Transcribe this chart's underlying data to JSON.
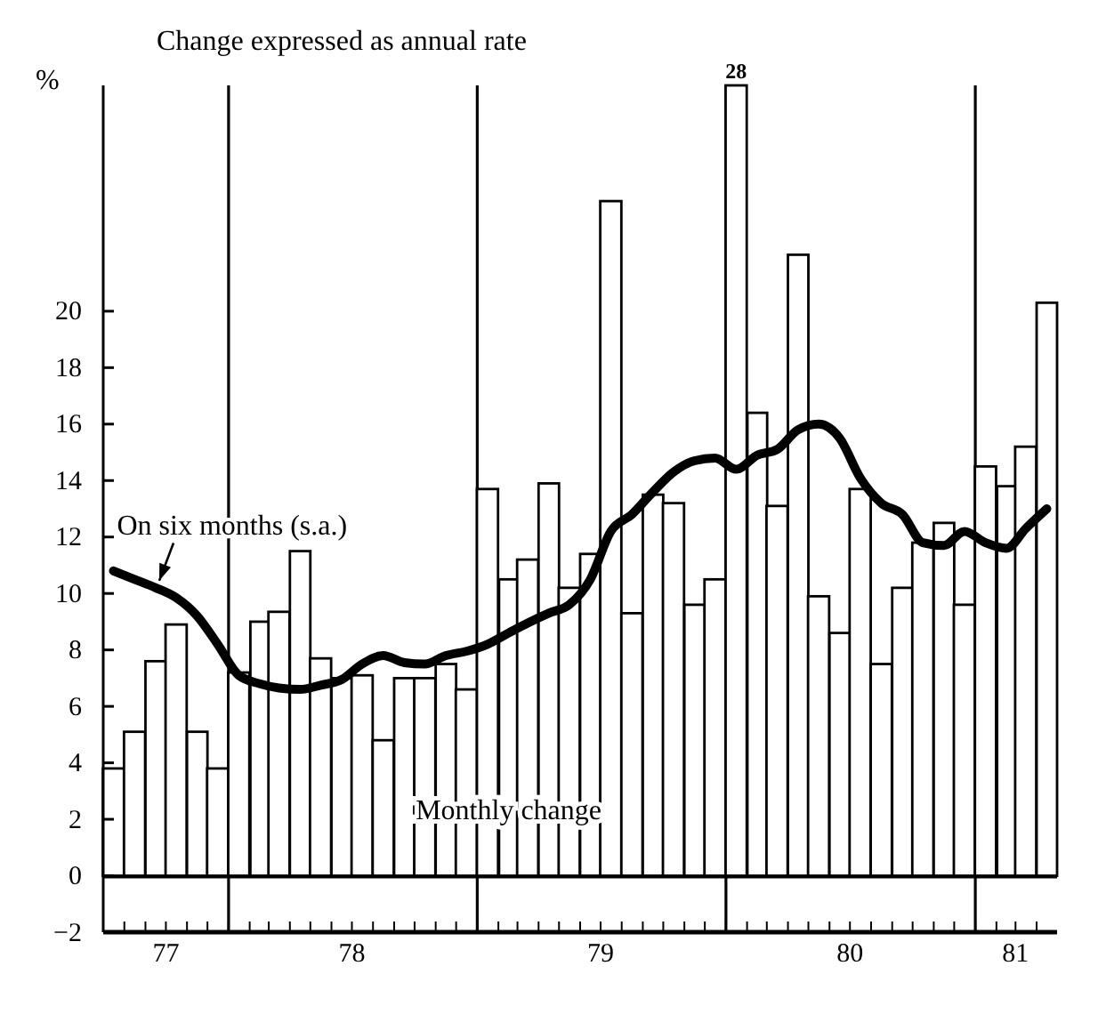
{
  "chart_data": {
    "type": "bar",
    "ylabel": "%",
    "x": [
      "1977-07-16",
      "1977-08-16",
      "1977-09-16",
      "1977-10-16",
      "1977-11-16",
      "1977-12-16",
      "1978-01-16",
      "1978-02-16",
      "1978-03-16",
      "1978-04-16",
      "1978-05-16",
      "1978-06-16",
      "1978-07-16",
      "1978-08-16",
      "1978-09-16",
      "1978-10-16",
      "1978-11-16",
      "1978-12-16",
      "1979-01-16",
      "1979-02-16",
      "1979-03-16",
      "1979-04-16",
      "1979-05-16",
      "1979-06-16",
      "1979-07-16",
      "1979-08-16",
      "1979-09-16",
      "1979-10-16",
      "1979-11-16",
      "1979-12-16",
      "1980-01-16",
      "1980-02-16",
      "1980-03-16",
      "1980-04-16",
      "1980-05-16",
      "1980-06-16",
      "1980-07-16",
      "1980-08-16",
      "1980-09-16",
      "1980-10-16",
      "1980-11-16",
      "1980-12-16",
      "1981-01-16",
      "1981-02-16",
      "1981-03-16",
      "1981-04-16"
    ],
    "series": [
      {
        "name": "Monthly change",
        "color": "#ffffff",
        "values": [
          3.8,
          5.1,
          7.6,
          8.9,
          5.1,
          3.8,
          7.2,
          9.0,
          9.35,
          11.5,
          7.7,
          7.0,
          7.1,
          4.8,
          7.0,
          7.0,
          7.5,
          6.6,
          13.7,
          10.5,
          11.2,
          13.9,
          10.2,
          11.4,
          23.9,
          9.3,
          13.5,
          13.2,
          9.6,
          10.5,
          28,
          16.4,
          13.1,
          22.0,
          9.9,
          8.6,
          13.7,
          7.5,
          10.2,
          11.8,
          12.5,
          9.6,
          14.5,
          13.8,
          15.2,
          20.3
        ],
        "value_labels": [
          null,
          null,
          null,
          null,
          null,
          null,
          null,
          null,
          null,
          null,
          null,
          null,
          null,
          null,
          null,
          null,
          null,
          null,
          null,
          null,
          null,
          null,
          null,
          null,
          null,
          null,
          null,
          null,
          null,
          null,
          "28",
          null,
          null,
          null,
          null,
          null,
          null,
          null,
          null,
          null,
          null,
          null,
          null,
          null,
          null,
          null
        ]
      },
      {
        "type": "line",
        "name": "On six months (s.a.)",
        "color": "#000000",
        "values": [
          10.8,
          10.5,
          10.2,
          9.85,
          9.2,
          8.2,
          7.1,
          6.8,
          6.65,
          6.6,
          6.75,
          6.95,
          7.5,
          7.8,
          7.55,
          7.5,
          7.8,
          7.95,
          8.2,
          8.6,
          8.95,
          9.3,
          9.6,
          10.5,
          12.2,
          12.8,
          13.6,
          14.3,
          14.7,
          14.8,
          14.4,
          14.9,
          15.1,
          15.8,
          16.0,
          15.5,
          14.1,
          13.2,
          12.8,
          11.8,
          11.7,
          12.2,
          11.8,
          11.6,
          12.3,
          13.0
        ]
      }
    ],
    "xlim": [
      "1977-07",
      "1981-05"
    ],
    "xticks": [
      {
        "value": "1977-10",
        "label": "77"
      },
      {
        "value": "1978-07",
        "label": "78"
      },
      {
        "value": "1979-07",
        "label": "79"
      },
      {
        "value": "1980-07",
        "label": "80"
      },
      {
        "value": "1981-03",
        "label": "81"
      }
    ],
    "ylim": [
      -2,
      28
    ],
    "yticks": [
      {
        "value": -2,
        "label": "−2"
      },
      0,
      2,
      4,
      6,
      8,
      10,
      12,
      14,
      16,
      18,
      20
    ],
    "ref_lines": [
      {
        "axis": "y",
        "value": 0
      },
      {
        "axis": "x",
        "value": "1978-01"
      },
      {
        "axis": "x",
        "value": "1979-01"
      },
      {
        "axis": "x",
        "value": "1980-01"
      },
      {
        "axis": "x",
        "value": "1981-01"
      }
    ],
    "annotations": [
      "Change expressed as annual rate"
    ]
  }
}
